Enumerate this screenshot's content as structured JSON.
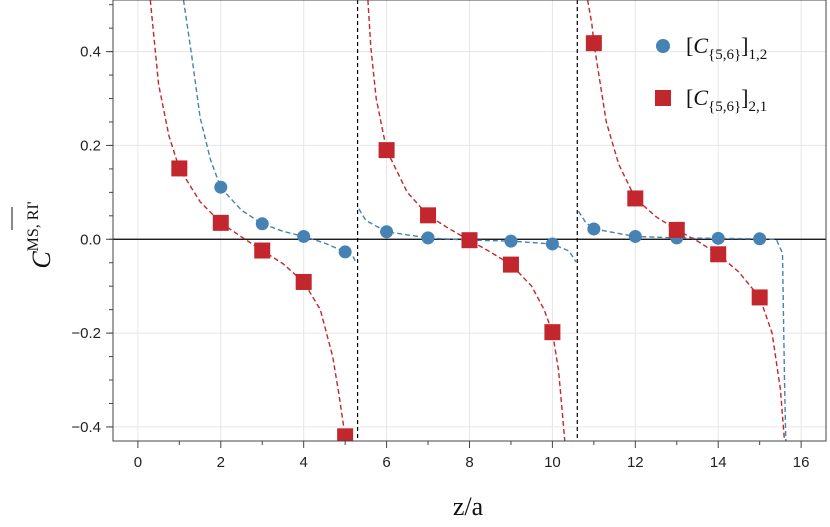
{
  "chart_data": {
    "type": "scatter",
    "xlabel": "z/a",
    "ylabel": "C",
    "ylabel_superscript": "MS, RI'",
    "xlim": [
      -0.6,
      16.6
    ],
    "ylim": [
      -0.43,
      0.51
    ],
    "x_ticks": [
      0,
      2,
      4,
      6,
      8,
      10,
      12,
      14,
      16
    ],
    "y_ticks": [
      -0.4,
      -0.2,
      0.0,
      0.2,
      0.4
    ],
    "x_tick_labels": [
      "0",
      "2",
      "4",
      "6",
      "8",
      "10",
      "12",
      "14",
      "16"
    ],
    "y_tick_labels": [
      "−0.4",
      "−0.2",
      "0.0",
      "0.2",
      "0.4"
    ],
    "grid": true,
    "legend_position": "top-right",
    "vertical_dashed_lines_x": [
      5.3,
      10.6
    ],
    "series": [
      {
        "name": "[C{5,6}]1,2",
        "legend_base": "[C",
        "legend_sub1": "{5,6}",
        "legend_close": "]",
        "legend_sub2": "1,2",
        "color": "#4682b4",
        "marker": "circle",
        "points": [
          {
            "x": 2,
            "y": 0.111
          },
          {
            "x": 3,
            "y": 0.033
          },
          {
            "x": 4,
            "y": 0.006
          },
          {
            "x": 5,
            "y": -0.027
          },
          {
            "x": 6,
            "y": 0.016
          },
          {
            "x": 7,
            "y": 0.003
          },
          {
            "x": 8,
            "y": -0.002
          },
          {
            "x": 9,
            "y": -0.004
          },
          {
            "x": 10,
            "y": -0.01
          },
          {
            "x": 11,
            "y": 0.022
          },
          {
            "x": 12,
            "y": 0.006
          },
          {
            "x": 13,
            "y": 0.003
          },
          {
            "x": 14,
            "y": 0.002
          },
          {
            "x": 15,
            "y": 0.001
          }
        ]
      },
      {
        "name": "[C{5,6}]2,1",
        "legend_base": "[C",
        "legend_sub1": "{5,6}",
        "legend_close": "]",
        "legend_sub2": "2,1",
        "color": "#c1272d",
        "marker": "square",
        "points": [
          {
            "x": 1,
            "y": 0.151
          },
          {
            "x": 2,
            "y": 0.035
          },
          {
            "x": 3,
            "y": -0.024
          },
          {
            "x": 4,
            "y": -0.091
          },
          {
            "x": 5,
            "y": -0.42
          },
          {
            "x": 6,
            "y": 0.19
          },
          {
            "x": 7,
            "y": 0.051
          },
          {
            "x": 8,
            "y": -0.002
          },
          {
            "x": 9,
            "y": -0.054
          },
          {
            "x": 10,
            "y": -0.198
          },
          {
            "x": 11,
            "y": 0.418
          },
          {
            "x": 12,
            "y": 0.087
          },
          {
            "x": 13,
            "y": 0.02
          },
          {
            "x": 14,
            "y": -0.032
          },
          {
            "x": 15,
            "y": -0.124
          }
        ]
      }
    ],
    "fit_curves": [
      {
        "series": "[C{5,6}]1,2",
        "color": "#4682b4",
        "segments": [
          [
            [
              1.1,
              0.51
            ],
            [
              1.3,
              0.39
            ],
            [
              1.5,
              0.26
            ],
            [
              1.75,
              0.17
            ],
            [
              2.0,
              0.11
            ],
            [
              2.5,
              0.062
            ],
            [
              3.0,
              0.033
            ],
            [
              3.5,
              0.017
            ],
            [
              4.0,
              0.006
            ],
            [
              4.5,
              -0.008
            ],
            [
              5.0,
              -0.027
            ],
            [
              5.2,
              -0.038
            ],
            [
              5.27,
              -0.052
            ]
          ],
          [
            [
              5.33,
              0.065
            ],
            [
              5.5,
              0.04
            ],
            [
              6.0,
              0.016
            ],
            [
              7.0,
              0.003
            ],
            [
              8.0,
              -0.002
            ],
            [
              9.0,
              -0.004
            ],
            [
              10.0,
              -0.01
            ],
            [
              10.4,
              -0.025
            ],
            [
              10.57,
              -0.048
            ]
          ],
          [
            [
              10.63,
              0.06
            ],
            [
              10.8,
              0.036
            ],
            [
              11.0,
              0.022
            ],
            [
              12.0,
              0.006
            ],
            [
              13.0,
              0.003
            ],
            [
              14.0,
              0.002
            ],
            [
              15.0,
              0.001
            ],
            [
              15.4,
              0.0
            ],
            [
              15.55,
              -0.03
            ],
            [
              15.6,
              -0.3
            ],
            [
              15.63,
              -0.43
            ]
          ]
        ]
      },
      {
        "series": "[C{5,6}]2,1",
        "color": "#c1272d",
        "segments": [
          [
            [
              0.3,
              0.51
            ],
            [
              0.5,
              0.33
            ],
            [
              0.75,
              0.22
            ],
            [
              1.0,
              0.151
            ],
            [
              1.5,
              0.08
            ],
            [
              2.0,
              0.035
            ],
            [
              2.5,
              0.005
            ],
            [
              3.0,
              -0.024
            ],
            [
              3.5,
              -0.052
            ],
            [
              4.0,
              -0.091
            ],
            [
              4.4,
              -0.15
            ],
            [
              4.7,
              -0.25
            ],
            [
              4.85,
              -0.33
            ],
            [
              5.0,
              -0.42
            ],
            [
              5.04,
              -0.43
            ]
          ],
          [
            [
              5.55,
              0.51
            ],
            [
              5.62,
              0.41
            ],
            [
              5.75,
              0.3
            ],
            [
              6.0,
              0.19
            ],
            [
              6.5,
              0.1
            ],
            [
              7.0,
              0.051
            ],
            [
              7.5,
              0.023
            ],
            [
              8.0,
              -0.002
            ],
            [
              8.5,
              -0.027
            ],
            [
              9.0,
              -0.054
            ],
            [
              9.5,
              -0.1
            ],
            [
              9.8,
              -0.15
            ],
            [
              10.0,
              -0.198
            ],
            [
              10.15,
              -0.28
            ],
            [
              10.3,
              -0.43
            ]
          ],
          [
            [
              10.85,
              0.51
            ],
            [
              10.95,
              0.46
            ],
            [
              11.0,
              0.418
            ],
            [
              11.3,
              0.25
            ],
            [
              11.6,
              0.16
            ],
            [
              12.0,
              0.087
            ],
            [
              12.5,
              0.048
            ],
            [
              13.0,
              0.02
            ],
            [
              13.5,
              -0.004
            ],
            [
              14.0,
              -0.032
            ],
            [
              14.5,
              -0.07
            ],
            [
              15.0,
              -0.124
            ],
            [
              15.3,
              -0.2
            ],
            [
              15.5,
              -0.32
            ],
            [
              15.6,
              -0.43
            ]
          ]
        ]
      }
    ]
  }
}
